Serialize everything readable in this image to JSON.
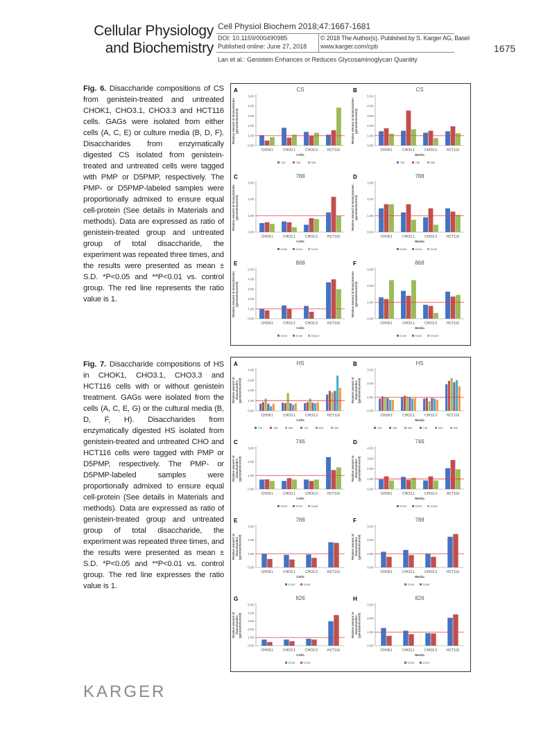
{
  "header": {
    "journal_line1": "Cellular Physiology",
    "journal_line2": "and Biochemistry",
    "citation": "Cell Physiol Biochem 2018;47:1667-1681",
    "doi": "DOI: 10.1159/000490985",
    "published": "Published online: June 27, 2018",
    "copyright": "© 2018 The Author(s). Published by S. Karger AG, Basel",
    "website": "www.karger.com/cpb",
    "page_number": "1675",
    "running_title": "Lan et al.: Genistein Enhances or Reduces Glycosaminoglycan Quantity"
  },
  "fig6": {
    "label": "Fig. 6.",
    "text": " Disaccharide compositions of CS from genistein-treated and untreated CHOK1, CHO3.1, CHO3.3 and HCT116 cells. GAGs were isolated from either cells (A, C, E) or culture media (B, D, F). Disaccharides from enzymatically digested CS isolated from genistein-treated and untreated cells were tagged with PMP or D5PMP, respectively. The PMP- or D5PMP-labeled samples were proportionally admixed to ensure equal cell-protein (See details in Materials and methods). Data are expressed as ratio of genistein-treated group and untreated group of total disaccharide, the experiment was repeated three times, and the results were presented as mean ± S.D. *P<0.05 and **P<0.01 vs. control group. The red line represents the ratio value is 1."
  },
  "fig7": {
    "label": "Fig. 7.",
    "text": " Disaccharide compositions of HS in CHOK1, CHO3.1, CHO3.3 and HCT116 cells with or without genistein treatment. GAGs were isolated from the cells (A, C, E, G) or the cultural media (B, D, F, H). Disaccharides from enzymatically digested HS isolated from genistein-treated and untreated CHO and HCT116 cells were tagged with PMP or D5PMP, respectively. The PMP- or D5PMP-labeled samples were proportionally admixed to ensure equal cell-protein (See details in Materials and methods). Data are expressed as ratio of genistein-treated group and untreated group of total disaccharide, the experiment was repeated three times, and the results were presented as mean ± S.D. *P<0.05 and **P<0.01 vs. control group. The red line expresses the ratio value is 1."
  },
  "footer": {
    "logo": "KARGER"
  },
  "colors": {
    "s1": "#4472c4",
    "s2": "#c0504d",
    "s3": "#9bbb59",
    "s4": "#8064a2",
    "s5": "#4bacc6",
    "s6": "#f79646",
    "reference_line": "#e8383d"
  },
  "chart_data": [
    {
      "figure": "6",
      "panel": "A",
      "type": "bar",
      "title": "CS",
      "xlabel": "Cells",
      "ylabel": "Relative amount of disaccharides (genistein/control)",
      "categories": [
        "CHOK1",
        "CHO3.1",
        "CHO3.3",
        "HCT116"
      ],
      "ylim": [
        0,
        5
      ],
      "yticks": [
        "0.00",
        "1.00",
        "2.00",
        "3.00",
        "4.00",
        "5.00"
      ],
      "reference_line": 1,
      "legend": "bottom",
      "series": [
        {
          "name": "708",
          "values": [
            1.05,
            1.8,
            1.38,
            1.1
          ]
        },
        {
          "name": "788",
          "values": [
            0.5,
            0.8,
            1.0,
            1.55
          ]
        },
        {
          "name": "868",
          "values": [
            0.85,
            1.1,
            1.3,
            3.85
          ]
        }
      ]
    },
    {
      "figure": "6",
      "panel": "B",
      "type": "bar",
      "title": "CS",
      "xlabel": "Media",
      "ylabel": "Relative amount of disaccharides (genistein/control)",
      "categories": [
        "CHOK1",
        "CHO3.1",
        "CHO3.3",
        "HCT116"
      ],
      "ylim": [
        0,
        5
      ],
      "yticks": [
        "0.00",
        "1.00",
        "2.00",
        "3.00",
        "4.00",
        "5.00"
      ],
      "reference_line": 1,
      "legend": "bottom",
      "series": [
        {
          "name": "708",
          "values": [
            1.45,
            1.5,
            1.3,
            1.45
          ]
        },
        {
          "name": "788",
          "values": [
            1.75,
            3.55,
            1.5,
            1.95
          ]
        },
        {
          "name": "868",
          "values": [
            1.2,
            1.65,
            0.75,
            1.25
          ]
        }
      ]
    },
    {
      "figure": "6",
      "panel": "C",
      "type": "bar",
      "title": "788",
      "xlabel": "Cells",
      "ylabel": "Relative amount of disaccharides (genistein/control)",
      "categories": [
        "CHOK1",
        "CHO3.1",
        "CHO3.3",
        "HCT116"
      ],
      "ylim": [
        0,
        3
      ],
      "yticks": [
        "0.00",
        "1.00",
        "2.00",
        "3.00"
      ],
      "reference_line": 1,
      "legend": "bottom",
      "series": [
        {
          "name": "D0a6",
          "values": [
            0.55,
            0.65,
            0.45,
            1.2
          ]
        },
        {
          "name": "D0a4",
          "values": [
            0.6,
            0.6,
            0.85,
            2.15
          ]
        },
        {
          "name": "D2a0",
          "values": [
            0.5,
            0.3,
            0.8,
            0.98
          ]
        }
      ]
    },
    {
      "figure": "6",
      "panel": "D",
      "type": "bar",
      "title": "788",
      "xlabel": "Media",
      "ylabel": "Relative amount of disaccharides (genistein/control)",
      "categories": [
        "CHOK1",
        "CHO3.1",
        "CHO3.3",
        "HCT116"
      ],
      "ylim": [
        0,
        3
      ],
      "yticks": [
        "0.00",
        "1.00",
        "2.00",
        "3.00"
      ],
      "reference_line": 1,
      "legend": "bottom",
      "series": [
        {
          "name": "D0a6",
          "values": [
            1.45,
            1.2,
            0.9,
            1.45
          ]
        },
        {
          "name": "D0a4",
          "values": [
            1.7,
            1.7,
            1.45,
            1.25
          ]
        },
        {
          "name": "D2a0",
          "values": [
            1.7,
            0.75,
            0.45,
            1.05
          ]
        }
      ]
    },
    {
      "figure": "6",
      "panel": "E",
      "type": "bar",
      "title": "868",
      "xlabel": "Cells",
      "ylabel": "Relative amount of disaccharides (genistein/control)",
      "categories": [
        "CHOK1",
        "CHO3.1",
        "CHO3.3",
        "HCT116"
      ],
      "ylim": [
        0,
        5
      ],
      "yticks": [
        "0.00",
        "1.00",
        "2.00",
        "3.00",
        "4.00",
        "5.00"
      ],
      "reference_line": 1,
      "legend": "bottom",
      "series": [
        {
          "name": "D2a4",
          "values": [
            1.0,
            1.35,
            1.3,
            3.7
          ]
        },
        {
          "name": "D2a6",
          "values": [
            0.85,
            1.0,
            0.7,
            4.0
          ]
        },
        {
          "name": "D0a10",
          "values": [
            0,
            0,
            0,
            3.0
          ]
        }
      ]
    },
    {
      "figure": "6",
      "panel": "F",
      "type": "bar",
      "title": "868",
      "xlabel": "Media",
      "ylabel": "Relative amount of disaccharides (genistein/control)",
      "categories": [
        "CHOK1",
        "CHO3.1",
        "CHO3.3",
        "HCT116"
      ],
      "ylim": [
        0,
        3
      ],
      "yticks": [
        "0.00",
        "1.00",
        "2.00",
        "3.00"
      ],
      "reference_line": 1,
      "legend": "bottom",
      "series": [
        {
          "name": "D2a4",
          "values": [
            1.3,
            1.7,
            0.85,
            1.65
          ]
        },
        {
          "name": "D2a6",
          "values": [
            1.2,
            1.4,
            0.78,
            1.35
          ]
        },
        {
          "name": "D0a10",
          "values": [
            2.35,
            2.35,
            0.35,
            1.45
          ]
        }
      ]
    },
    {
      "figure": "7",
      "panel": "A",
      "type": "bar",
      "title": "HS",
      "xlabel": "Cells",
      "ylabel": "Relative amount of disaccharides (genistein/control)",
      "categories": [
        "CHOK1",
        "CHO3.1",
        "CHO3.3",
        "HCT116"
      ],
      "ylim": [
        0,
        4
      ],
      "yticks": [
        "0.00",
        "1.00",
        "2.00",
        "3.00",
        "4.00"
      ],
      "reference_line": 1,
      "legend": "bottom",
      "series": [
        {
          "name": "708",
          "values": [
            0.7,
            0.8,
            0.75,
            1.6
          ]
        },
        {
          "name": "788",
          "values": [
            0.85,
            0.75,
            0.85,
            1.95
          ]
        },
        {
          "name": "868",
          "values": [
            1.2,
            1.75,
            1.2,
            1.8
          ]
        },
        {
          "name": "746",
          "values": [
            0.7,
            0.75,
            0.8,
            1.95
          ]
        },
        {
          "name": "826",
          "values": [
            0.45,
            0.6,
            0.75,
            3.45
          ]
        },
        {
          "name": "906",
          "values": [
            0.7,
            0.75,
            0.85,
            2.25
          ]
        }
      ]
    },
    {
      "figure": "7",
      "panel": "B",
      "type": "bar",
      "title": "HS",
      "xlabel": "Media",
      "ylabel": "Relative amount of disaccharides (genistein/control)",
      "categories": [
        "CHOK1",
        "CHO3.1",
        "CHO3.3",
        "HCT116"
      ],
      "ylim": [
        0,
        3
      ],
      "yticks": [
        "0.00",
        "1.00",
        "2.00",
        "3.00"
      ],
      "reference_line": 1,
      "legend": "bottom",
      "series": [
        {
          "name": "708",
          "values": [
            0.9,
            1.0,
            0.9,
            1.95
          ]
        },
        {
          "name": "788",
          "values": [
            1.05,
            1.1,
            0.95,
            2.2
          ]
        },
        {
          "name": "868",
          "values": [
            1.0,
            1.05,
            0.7,
            2.4
          ]
        },
        {
          "name": "746",
          "values": [
            0.95,
            1.0,
            0.95,
            2.1
          ]
        },
        {
          "name": "826",
          "values": [
            0.8,
            0.9,
            0.9,
            2.25
          ]
        },
        {
          "name": "906",
          "values": [
            0.8,
            0.95,
            0.8,
            1.8
          ]
        }
      ]
    },
    {
      "figure": "7",
      "panel": "C",
      "type": "bar",
      "title": "746",
      "xlabel": "Cells",
      "ylabel": "Relative amount of disaccharides (genistein/control)",
      "categories": [
        "CHOK1",
        "CHO3.1",
        "CHO3.3",
        "HCT116"
      ],
      "ylim": [
        0,
        3
      ],
      "yticks": [
        "0.00",
        "1.00",
        "2.00",
        "3.00"
      ],
      "reference_line": 1,
      "legend": "bottom",
      "series": [
        {
          "name": "D2A0",
          "values": [
            0.7,
            0.6,
            0.7,
            2.35
          ]
        },
        {
          "name": "D0S0",
          "values": [
            0.72,
            0.8,
            0.6,
            1.4
          ]
        },
        {
          "name": "D0A6",
          "values": [
            0.6,
            0.7,
            0.7,
            1.6
          ]
        }
      ]
    },
    {
      "figure": "7",
      "panel": "D",
      "type": "bar",
      "title": "746",
      "xlabel": "Media",
      "ylabel": "Relative amount of disaccharides (genistein/control)",
      "categories": [
        "CHOK1",
        "CHO3.1",
        "CHO3.3",
        "HCT116"
      ],
      "ylim": [
        0,
        4
      ],
      "yticks": [
        "0.00",
        "1.00",
        "2.00",
        "3.00",
        "4.00"
      ],
      "reference_line": 1,
      "legend": "bottom",
      "series": [
        {
          "name": "D2A0",
          "values": [
            0.95,
            1.2,
            0.85,
            2.05
          ]
        },
        {
          "name": "D0S0",
          "values": [
            1.25,
            0.9,
            1.25,
            2.85
          ]
        },
        {
          "name": "D0A6",
          "values": [
            0.85,
            1.1,
            0.85,
            1.95
          ]
        }
      ]
    },
    {
      "figure": "7",
      "panel": "E",
      "type": "bar",
      "title": "788",
      "xlabel": "Cells",
      "ylabel": "Relative amount of disaccharides (genistein/control)",
      "categories": [
        "CHOK1",
        "CHO3.1",
        "CHO3.3",
        "HCT116"
      ],
      "ylim": [
        0,
        3
      ],
      "yticks": [
        "0.00",
        "1.00",
        "2.00",
        "3.00"
      ],
      "reference_line": 1,
      "legend": "bottom",
      "series": [
        {
          "name": "D2A0",
          "values": [
            0.98,
            0.92,
            0.95,
            1.85
          ]
        },
        {
          "name": "D0A6",
          "values": [
            0.62,
            0.58,
            0.7,
            1.8
          ]
        }
      ]
    },
    {
      "figure": "7",
      "panel": "F",
      "type": "bar",
      "title": "788",
      "xlabel": "Media",
      "ylabel": "Relative amount of disaccharides (genistein/control)",
      "categories": [
        "CHOK1",
        "CHO3.1",
        "CHO3.3",
        "HCT116"
      ],
      "ylim": [
        0,
        3
      ],
      "yticks": [
        "0.00",
        "1.00",
        "2.00",
        "3.00"
      ],
      "reference_line": 1,
      "legend": "bottom",
      "series": [
        {
          "name": "D2A0",
          "values": [
            1.15,
            1.28,
            1.0,
            2.25
          ]
        },
        {
          "name": "D0A6",
          "values": [
            0.78,
            0.9,
            0.78,
            2.45
          ]
        }
      ]
    },
    {
      "figure": "7",
      "panel": "G",
      "type": "bar",
      "title": "826",
      "xlabel": "Cells",
      "ylabel": "Relative amount of disaccharides (genistein/control)",
      "categories": [
        "CHOK1",
        "CHO3.1",
        "CHO3.3",
        "HCT116"
      ],
      "ylim": [
        0,
        5
      ],
      "yticks": [
        "0.00",
        "1.00",
        "2.00",
        "3.00",
        "4.00",
        "5.00"
      ],
      "reference_line": 1,
      "legend": "bottom",
      "series": [
        {
          "name": "D0S6",
          "values": [
            0.75,
            0.75,
            0.85,
            3.0
          ]
        },
        {
          "name": "D2S0",
          "values": [
            0.45,
            0.55,
            0.75,
            3.75
          ]
        }
      ]
    },
    {
      "figure": "7",
      "panel": "H",
      "type": "bar",
      "title": "826",
      "xlabel": "Media",
      "ylabel": "Relative amount of disaccharides (genistein/control)",
      "categories": [
        "CHOK1",
        "CHO3.1",
        "CHO3.3",
        "HCT116"
      ],
      "ylim": [
        0,
        3
      ],
      "yticks": [
        "0.00",
        "1.00",
        "2.00",
        "3.00"
      ],
      "reference_line": 1,
      "legend": "bottom",
      "series": [
        {
          "name": "D0S6",
          "values": [
            1.3,
            1.1,
            0.92,
            2.05
          ]
        },
        {
          "name": "D2S0",
          "values": [
            0.72,
            0.85,
            0.9,
            2.3
          ]
        }
      ]
    }
  ]
}
